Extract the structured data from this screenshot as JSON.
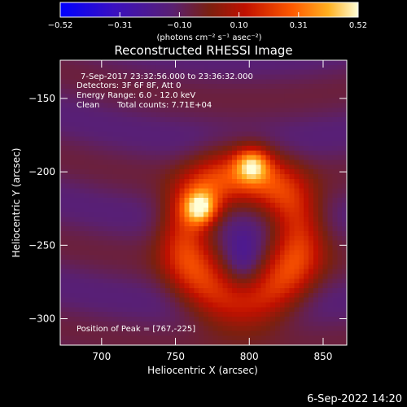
{
  "chart_data": {
    "type": "heatmap",
    "title": "Reconstructed RHESSI Image",
    "xlabel": "Heliocentric X (arcsec)",
    "ylabel": "Heliocentric Y (arcsec)",
    "xlim": [
      672,
      866
    ],
    "ylim": [
      -318,
      -124
    ],
    "x_ticks": [
      700,
      750,
      800,
      850
    ],
    "y_ticks": [
      -150,
      -200,
      -250,
      -300
    ],
    "colorbar": {
      "min": -0.52,
      "max": 0.52,
      "ticks": [
        "-0.52",
        "-0.31",
        "-0.10",
        "0.10",
        "0.31",
        "0.52"
      ],
      "units": "(photons cm⁻² s⁻¹ asec⁻²)"
    },
    "annotations": [
      "7-Sep-2017 23:32:56.000 to 23:36:32.000",
      "Detectors: 3F 6F 8F, Att 0",
      "Energy Range: 6.0 - 12.0 keV",
      "Clean",
      "Total counts: 7.71E+04"
    ],
    "peak_label": "Position of Peak = [767,-225]",
    "sources": [
      {
        "x": 767,
        "y": -225,
        "peak": 0.52
      },
      {
        "x": 802,
        "y": -195,
        "peak": 0.47
      }
    ],
    "ring": {
      "x": 795,
      "y": -245,
      "radius": 38,
      "level": 0.22
    },
    "core": {
      "x": 796,
      "y": -262,
      "level": -0.12
    }
  },
  "footer": {
    "timestamp": "6-Sep-2022 14:20"
  }
}
